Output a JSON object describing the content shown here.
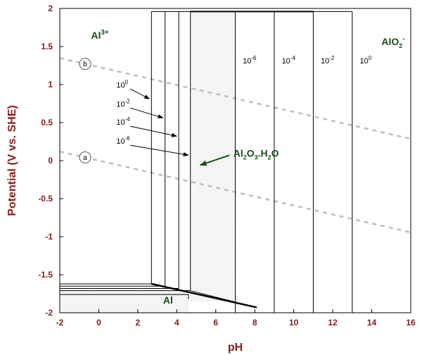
{
  "chart_data": {
    "type": "pourbaix",
    "xlabel": "pH",
    "ylabel": "Potential (V vs. SHE)",
    "xlim": [
      -2,
      16
    ],
    "ylim": [
      -2,
      2
    ],
    "xticks": [
      "-2",
      "0",
      "2",
      "4",
      "6",
      "8",
      "10",
      "12",
      "14",
      "16"
    ],
    "yticks": [
      "2",
      "1.5",
      "1",
      "0.5",
      "0",
      "-0.5",
      "-1",
      "-1.5",
      "-2"
    ],
    "species": {
      "al3": {
        "base": "Al",
        "sup": "3+",
        "x": -0.4,
        "y": 1.6
      },
      "alo2": {
        "base": "AlO",
        "sub": "2",
        "sup": "-",
        "x": 14.5,
        "y": 1.52
      },
      "al": {
        "text": "Al",
        "x": 3.3,
        "y": -1.88
      },
      "oxide": {
        "p1": "Al",
        "s1": "2",
        "p2": "O",
        "s2": "3",
        "p3": ".H",
        "s3": "2",
        "p4": "O",
        "x": 6.9,
        "y": 0.05
      }
    },
    "acid_boundaries": [
      {
        "conc": "10^0",
        "ph": 2.7,
        "base": "10",
        "exp": "0",
        "label_x": 0.9,
        "label_y": 0.96
      },
      {
        "conc": "10^-2",
        "ph": 3.4,
        "base": "10",
        "exp": "-2",
        "label_x": 0.9,
        "label_y": 0.71
      },
      {
        "conc": "10^-4",
        "ph": 4.1,
        "base": "10",
        "exp": "-4",
        "label_x": 0.9,
        "label_y": 0.47
      },
      {
        "conc": "10^-6",
        "ph": 4.7,
        "base": "10",
        "exp": "-6",
        "label_x": 0.9,
        "label_y": 0.22
      }
    ],
    "alkaline_boundaries": [
      {
        "conc": "10^-6",
        "ph": 7.0,
        "base": "10",
        "exp": "-6",
        "label_x": 7.6
      },
      {
        "conc": "10^-4",
        "ph": 9.0,
        "base": "10",
        "exp": "-4",
        "label_x": 9.6
      },
      {
        "conc": "10^-2",
        "ph": 11.0,
        "base": "10",
        "exp": "-2",
        "label_x": 11.6
      },
      {
        "conc": "10^0",
        "ph": 13.0,
        "base": "10",
        "exp": "0",
        "label_x": 13.6
      }
    ],
    "metal_boundary_potentials": [
      -1.62,
      -1.65,
      -1.68,
      -1.71
    ],
    "water_lines": [
      {
        "label": "b",
        "ph0_potential": 1.23,
        "slope": -0.059
      },
      {
        "label": "a",
        "ph0_potential": 0.0,
        "slope": -0.059
      }
    ],
    "grid": false
  }
}
